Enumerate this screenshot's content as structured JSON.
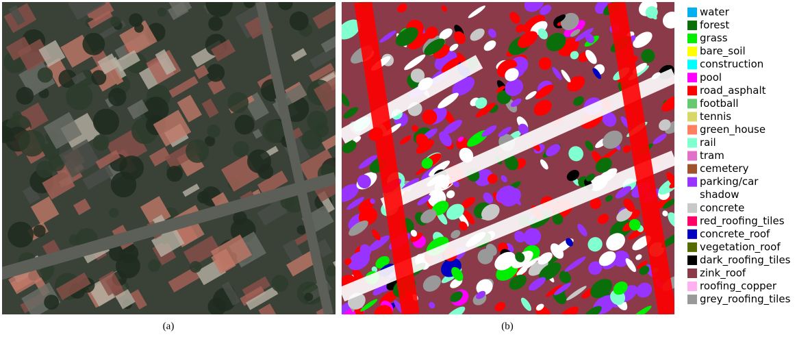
{
  "panels": [
    {
      "caption": "(a)"
    },
    {
      "caption": "(b)"
    }
  ],
  "legend": {
    "items": [
      {
        "label": "water",
        "color": "#00b0f0"
      },
      {
        "label": "forest",
        "color": "#0a6e0a"
      },
      {
        "label": "grass",
        "color": "#00ee00"
      },
      {
        "label": "bare_soil",
        "color": "#ffff00"
      },
      {
        "label": "construction",
        "color": "#00ffff"
      },
      {
        "label": "pool",
        "color": "#ff00ff"
      },
      {
        "label": "road_asphalt",
        "color": "#ff0000"
      },
      {
        "label": "football",
        "color": "#66c870"
      },
      {
        "label": "tennis",
        "color": "#d8d868"
      },
      {
        "label": "green_house",
        "color": "#ff8060"
      },
      {
        "label": "rail",
        "color": "#80ffd0"
      },
      {
        "label": "tram",
        "color": "#e070c8"
      },
      {
        "label": "cemetery",
        "color": "#a0522d"
      },
      {
        "label": "parking/car",
        "color": "#9933ff"
      },
      {
        "label": "shadow",
        "color": "#ffffff"
      },
      {
        "label": "concrete",
        "color": "#c8c8c8"
      },
      {
        "label": "red_roofing_tiles",
        "color": "#ff0066"
      },
      {
        "label": "concrete_roof",
        "color": "#0000c0"
      },
      {
        "label": "vegetation_roof",
        "color": "#556b00"
      },
      {
        "label": "dark_roofing_tiles",
        "color": "#000000"
      },
      {
        "label": "zink_roof",
        "color": "#8b3a4a"
      },
      {
        "label": "roofing_copper",
        "color": "#ffb0f0"
      },
      {
        "label": "grey_roofing_tiles",
        "color": "#999999"
      }
    ]
  }
}
